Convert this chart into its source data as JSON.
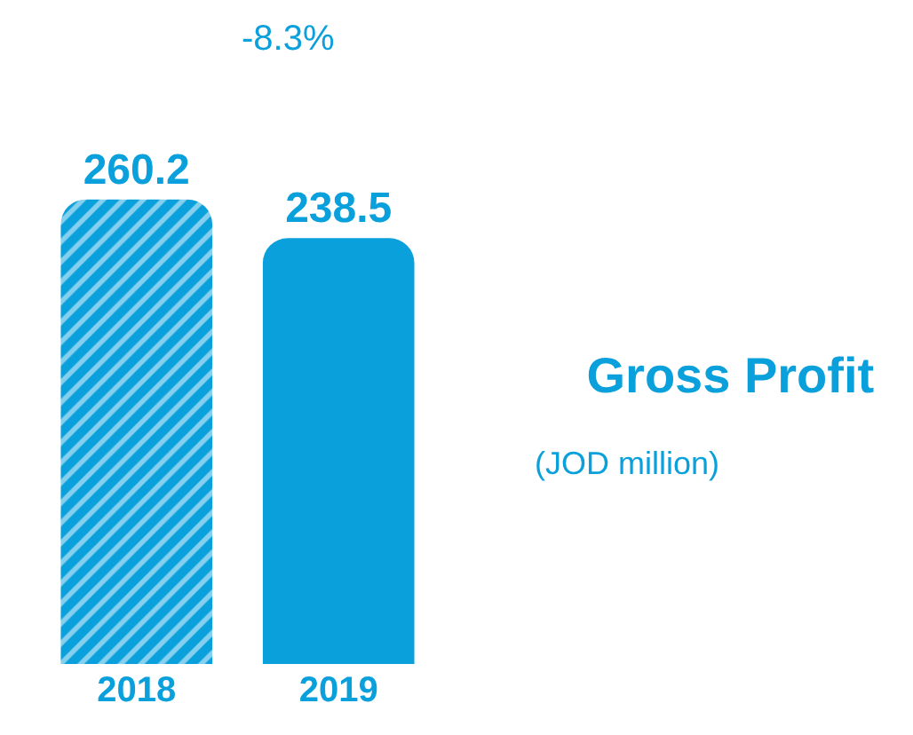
{
  "chart_data": {
    "type": "bar",
    "title": "Gross Profit",
    "subtitle": "(JOD million)",
    "categories": [
      "2018",
      "2019"
    ],
    "values": [
      260.2,
      238.5
    ],
    "colors": [
      "#0aa0dc",
      "#0aa0dc"
    ],
    "data_labels": true,
    "annotations": [
      "-8.3%"
    ]
  }
}
